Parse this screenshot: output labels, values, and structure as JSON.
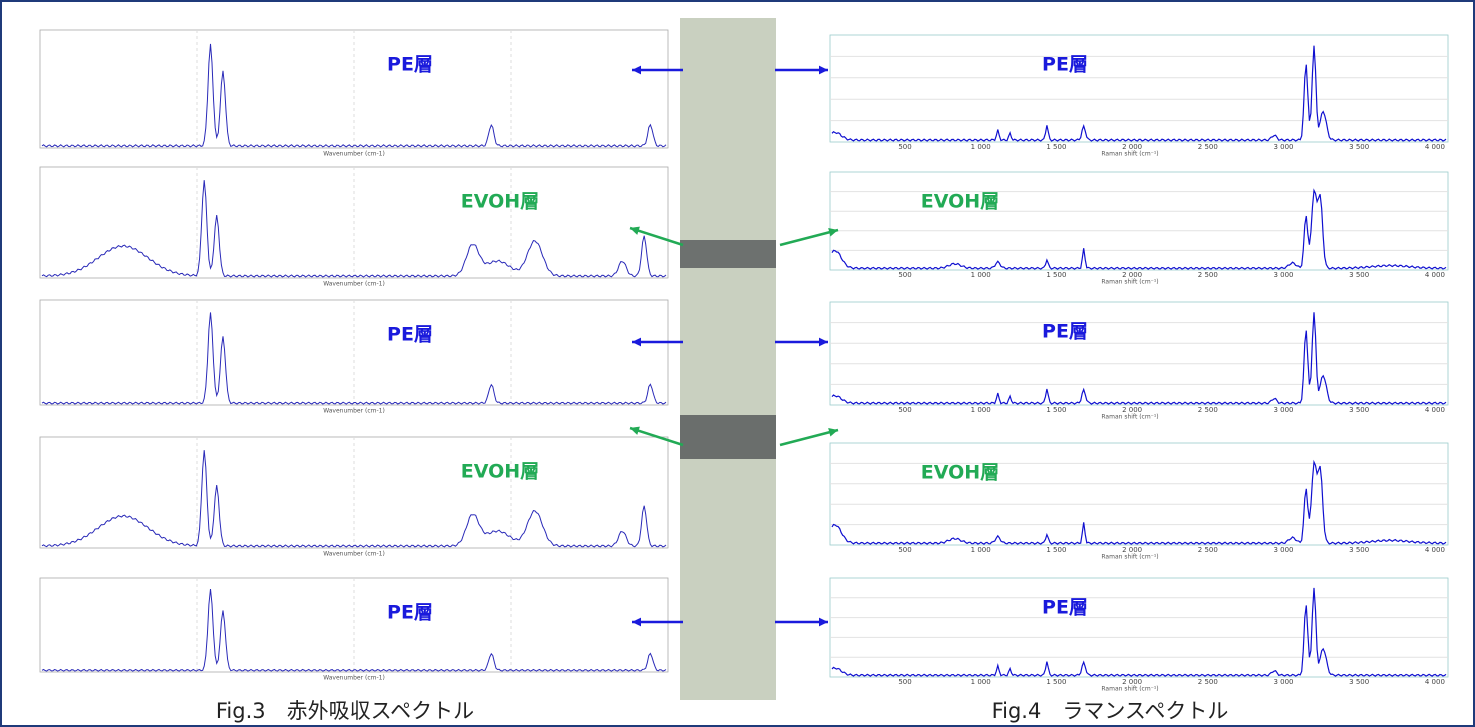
{
  "figure": {
    "layers": [
      {
        "label": "PE層"
      },
      {
        "label": "EVOH層"
      },
      {
        "label": "PE層"
      },
      {
        "label": "EVOH層"
      },
      {
        "label": "PE層"
      }
    ],
    "ir_axis_title": "Wavenumber (cm-1)",
    "raman_axis_title": "Raman shift (cm⁻¹)",
    "raman_xticks": [
      "500",
      "1 000",
      "1 500",
      "2 000",
      "2 500",
      "3 000",
      "3 500",
      "4 000"
    ],
    "captions": {
      "ir": "Fig.3　赤外吸収スペクトル",
      "raman": "Fig.4　ラマンスペクトル"
    }
  }
}
